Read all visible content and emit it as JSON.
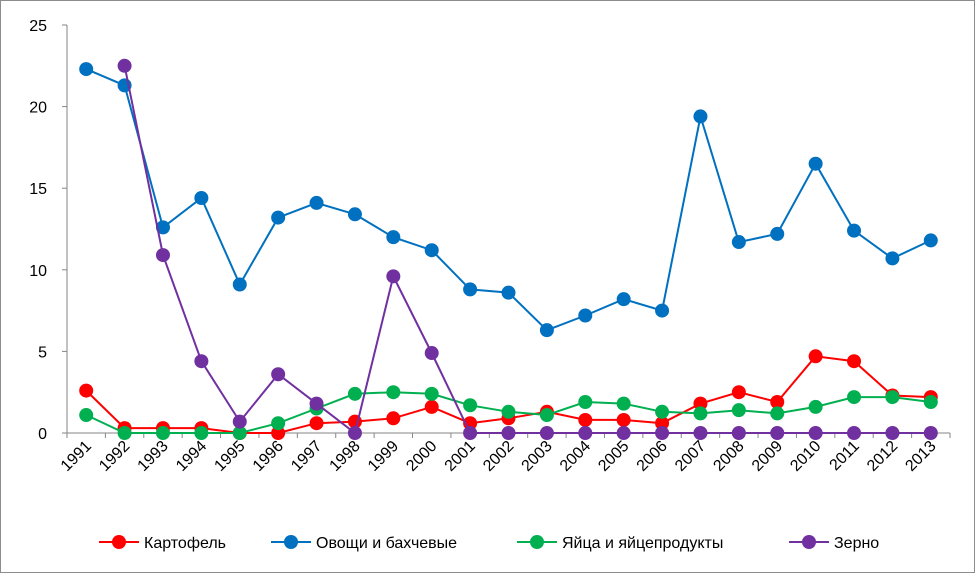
{
  "chart_data": {
    "type": "line",
    "title": "",
    "xlabel": "",
    "ylabel": "",
    "ylim": [
      0,
      25
    ],
    "yticks": [
      0,
      5,
      10,
      15,
      20,
      25
    ],
    "grid": false,
    "legend_position": "bottom",
    "x": [
      "1991",
      "1992",
      "1993",
      "1994",
      "1995",
      "1996",
      "1997",
      "1998",
      "1999",
      "2000",
      "2001",
      "2002",
      "2003",
      "2004",
      "2005",
      "2006",
      "2007",
      "2008",
      "2009",
      "2010",
      "2011",
      "2012",
      "2013"
    ],
    "series": [
      {
        "name": "Картофель",
        "color": "#ff0000",
        "values": [
          2.6,
          0.3,
          0.3,
          0.3,
          0.0,
          0.0,
          0.6,
          0.7,
          0.9,
          1.6,
          0.6,
          0.9,
          1.3,
          0.8,
          0.8,
          0.6,
          1.8,
          2.5,
          1.9,
          4.7,
          4.4,
          2.3,
          2.2
        ]
      },
      {
        "name": "Овощи и бахчевые",
        "color": "#0070c0",
        "values": [
          22.3,
          21.3,
          12.6,
          14.4,
          9.1,
          13.2,
          14.1,
          13.4,
          12.0,
          11.2,
          8.8,
          8.6,
          6.3,
          7.2,
          8.2,
          7.5,
          19.4,
          11.7,
          12.2,
          16.5,
          12.4,
          10.7,
          11.8
        ]
      },
      {
        "name": "Яйца и яйцепродукты",
        "color": "#00b050",
        "values": [
          1.1,
          0.0,
          0.0,
          0.0,
          0.0,
          0.6,
          1.5,
          2.4,
          2.5,
          2.4,
          1.7,
          1.3,
          1.1,
          1.9,
          1.8,
          1.3,
          1.2,
          1.4,
          1.2,
          1.6,
          2.2,
          2.2,
          1.9
        ]
      },
      {
        "name": "Зерно",
        "color": "#7030a0",
        "values": [
          null,
          22.5,
          10.9,
          4.4,
          0.7,
          3.6,
          1.8,
          0.0,
          9.6,
          4.9,
          0.0,
          0.0,
          0.0,
          0.0,
          0.0,
          0.0,
          0.0,
          0.0,
          0.0,
          0.0,
          0.0,
          0.0,
          0.0
        ]
      }
    ]
  }
}
